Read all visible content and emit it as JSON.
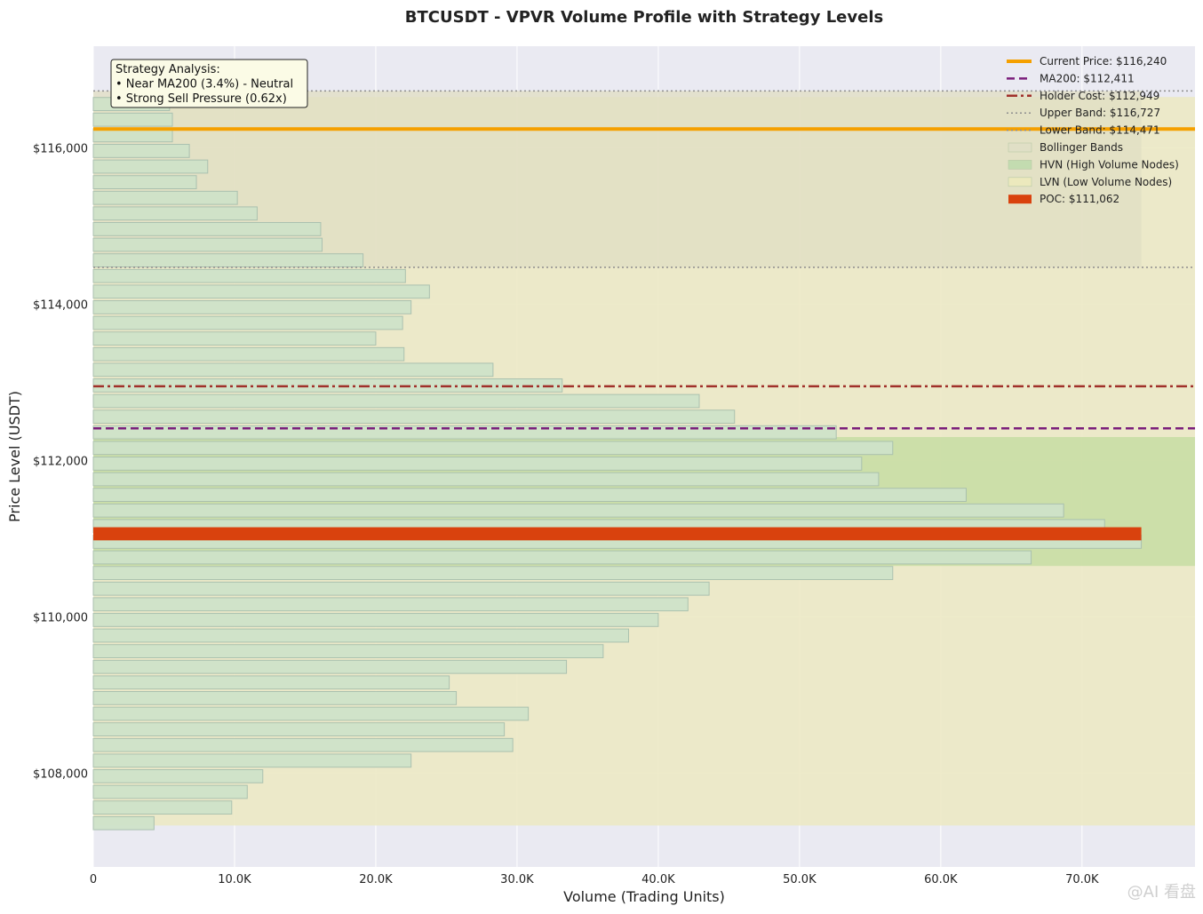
{
  "chart_data": {
    "type": "bar",
    "orientation": "horizontal",
    "title": "BTCUSDT - VPVR Volume Profile with Strategy Levels",
    "xlabel": "Volume (Trading Units)",
    "ylabel": "Price Level (USDT)",
    "xlim": [
      0,
      78000
    ],
    "ylim": [
      106800,
      117300
    ],
    "x_ticks": [
      0,
      10000,
      20000,
      30000,
      40000,
      50000,
      60000,
      70000
    ],
    "x_tick_labels": [
      "0",
      "10.0K",
      "20.0K",
      "30.0K",
      "40.0K",
      "50.0K",
      "60.0K",
      "70.0K"
    ],
    "y_ticks": [
      108000,
      110000,
      112000,
      114000,
      116000
    ],
    "y_tick_labels": [
      "$108,000",
      "$110,000",
      "$112,000",
      "$114,000",
      "$116,000"
    ],
    "grid": true,
    "legend_position": "top-right",
    "bin_size": 200,
    "price_levels": [
      107360,
      107560,
      107760,
      107960,
      108160,
      108360,
      108560,
      108760,
      108960,
      109160,
      109360,
      109560,
      109760,
      109960,
      110160,
      110360,
      110560,
      110760,
      110960,
      111160,
      111360,
      111560,
      111760,
      111960,
      112160,
      112360,
      112560,
      112760,
      112960,
      113160,
      113360,
      113560,
      113760,
      113960,
      114160,
      114360,
      114560,
      114760,
      114960,
      115160,
      115360,
      115560,
      115760,
      115960,
      116160,
      116360,
      116560
    ],
    "volumes": [
      4300,
      9800,
      10900,
      12000,
      22500,
      29700,
      29100,
      30800,
      25700,
      25200,
      33500,
      36100,
      37900,
      40000,
      42100,
      43600,
      56600,
      66400,
      74200,
      71600,
      68700,
      61800,
      55600,
      54400,
      56600,
      52600,
      45400,
      42900,
      33200,
      28300,
      22000,
      20000,
      21900,
      22500,
      23800,
      22100,
      19100,
      16200,
      16100,
      11600,
      10200,
      7300,
      8100,
      6800,
      5600,
      5600,
      5400
    ],
    "poc_price": 111062,
    "hvn_range": [
      110650,
      112300
    ],
    "lvn_range": [
      107330,
      116650
    ],
    "bollinger_range": [
      114471,
      116727
    ],
    "levels": [
      {
        "name": "Current Price",
        "value": 116240,
        "color": "#f5a000",
        "style": "solid"
      },
      {
        "name": "MA200",
        "value": 112411,
        "color": "#7b1f7b",
        "style": "dashed"
      },
      {
        "name": "Holder Cost",
        "value": 112949,
        "color": "#a0302a",
        "style": "dashdot"
      },
      {
        "name": "Upper Band",
        "value": 116727,
        "color": "#8e8e8e",
        "style": "dotted"
      },
      {
        "name": "Lower Band",
        "value": 114471,
        "color": "#8e8e8e",
        "style": "dotted"
      }
    ],
    "legend": [
      {
        "label": "Current Price: $116,240",
        "kind": "line",
        "color": "#f5a000",
        "style": "solid"
      },
      {
        "label": "MA200: $112,411",
        "kind": "line",
        "color": "#7b1f7b",
        "style": "dashed"
      },
      {
        "label": "Holder Cost: $112,949",
        "kind": "line",
        "color": "#a0302a",
        "style": "dashdot"
      },
      {
        "label": "Upper Band: $116,727",
        "kind": "line",
        "color": "#8e8e8e",
        "style": "dotted"
      },
      {
        "label": "Lower Band: $114,471",
        "kind": "line",
        "color": "#8e8e8e",
        "style": "dotted"
      },
      {
        "label": "Bollinger Bands",
        "kind": "patch",
        "color": "#e0dfc6"
      },
      {
        "label": "HVN (High Volume Nodes)",
        "kind": "patch",
        "color": "#c3dcb0"
      },
      {
        "label": "LVN (Low Volume Nodes)",
        "kind": "patch",
        "color": "#ece9bd"
      },
      {
        "label": "POC: $111,062",
        "kind": "patch",
        "color": "#d9420e"
      }
    ],
    "annotation": {
      "lines": [
        "Strategy Analysis:",
        "• Near MA200 (3.4%) - Neutral",
        "• Strong Sell Pressure (0.62x)"
      ]
    },
    "colors": {
      "background": "#eaeaf2",
      "bar_fill": "#cfe3c9",
      "bar_edge": "#a8bfae",
      "poc": "#d9420e",
      "hvn_zone": "#c9dea5",
      "lvn_zone": "#ece9c4",
      "bollinger_zone": "#e1dfc4"
    }
  },
  "watermark": "@AI 看盘"
}
